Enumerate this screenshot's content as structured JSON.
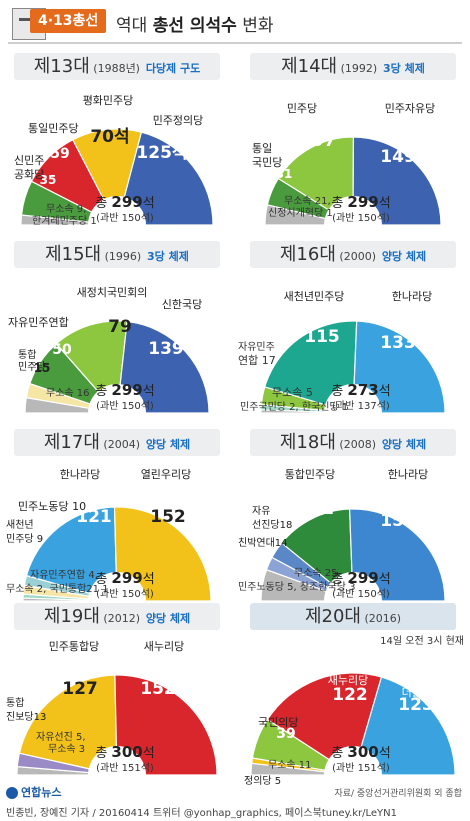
{
  "header": {
    "badge": "4·13총선",
    "title_pre": "역대 ",
    "title_strong": "총선 의석수",
    "title_post": " 변화"
  },
  "colors": {
    "blue": "#3d62b0",
    "yellow": "#f2c21b",
    "red": "#d8262c",
    "green": "#4a9a3e",
    "lightgreen": "#8dc63f",
    "gray": "#b8b8b8",
    "teal": "#1ea790",
    "lightblue": "#3aa3df",
    "dark-green": "#2e8b3c",
    "periwinkle": "#8ca3d6",
    "purple": "#9a8ac6",
    "cream": "#f5e6a5",
    "mint": "#9ed9c4"
  },
  "chart_data": [
    {
      "type": "pie",
      "gen": "제13대",
      "year": "(1988년)",
      "system": "다당제 구도",
      "total": "299",
      "majority": "(과반 150석)",
      "slices": [
        {
          "name": "무소속 9, 한겨레민주당 1",
          "value": 10,
          "color": "#b8b8b8"
        },
        {
          "name": "신민주 공화당",
          "value": 35,
          "color": "#4a9a3e"
        },
        {
          "name": "통일민주당",
          "value": 59,
          "color": "#d8262c"
        },
        {
          "name": "평화민주당",
          "value": 70,
          "color": "#f2c21b"
        },
        {
          "name": "민주정의당",
          "value": 125,
          "color": "#3d62b0"
        }
      ]
    },
    {
      "type": "pie",
      "gen": "제14대",
      "year": "(1992)",
      "system": "3당 체제",
      "total": "299",
      "majority": "(과반 150석)",
      "slices": [
        {
          "name": "무소속 21, 신정치개혁당 1",
          "value": 22,
          "color": "#b8b8b8"
        },
        {
          "name": "통일 국민당",
          "value": 31,
          "color": "#4a9a3e"
        },
        {
          "name": "민주당",
          "value": 97,
          "color": "#8dc63f"
        },
        {
          "name": "민주자유당",
          "value": 149,
          "color": "#3d62b0"
        }
      ]
    },
    {
      "type": "pie",
      "gen": "제15대",
      "year": "(1996)",
      "system": "3당 체제",
      "total": "299",
      "majority": "(과반 150석)",
      "slices": [
        {
          "name": "무소속 16",
          "value": 16,
          "color": "#b8b8b8"
        },
        {
          "name": "통합 민주당",
          "value": 15,
          "color": "#f5e6a5"
        },
        {
          "name": "자유민주연합",
          "value": 50,
          "color": "#4a9a3e"
        },
        {
          "name": "새정치국민회의",
          "value": 79,
          "color": "#8dc63f"
        },
        {
          "name": "신한국당",
          "value": 139,
          "color": "#3d62b0"
        }
      ]
    },
    {
      "type": "pie",
      "gen": "제16대",
      "year": "(2000)",
      "system": "양당 체제",
      "total": "273",
      "majority": "(과반 137석)",
      "slices": [
        {
          "name": "민주국민당 2, 한국신당 1",
          "value": 3,
          "color": "#b8b8b8"
        },
        {
          "name": "무소속 5",
          "value": 5,
          "color": "#9ed9c4"
        },
        {
          "name": "자유민주 연합 17",
          "value": 17,
          "color": "#8dc63f"
        },
        {
          "name": "새천년민주당",
          "value": 115,
          "color": "#1ea790"
        },
        {
          "name": "한나라당",
          "value": 133,
          "color": "#3aa3df"
        }
      ]
    },
    {
      "type": "pie",
      "gen": "제17대",
      "year": "(2004)",
      "system": "양당 체제",
      "total": "299",
      "majority": "(과반 150석)",
      "slices": [
        {
          "name": "무소속 2, 국민통합21 1",
          "value": 3,
          "color": "#b8b8b8"
        },
        {
          "name": "자유민주연합 4",
          "value": 4,
          "color": "#9ed9c4"
        },
        {
          "name": "새천년 민주당 9",
          "value": 9,
          "color": "#f5e6a5"
        },
        {
          "name": "민주노동당 10",
          "value": 10,
          "color": "#9ad0d4"
        },
        {
          "name": "한나라당",
          "value": 121,
          "color": "#3aa3df"
        },
        {
          "name": "열린우리당",
          "value": 152,
          "color": "#f2c21b"
        }
      ]
    },
    {
      "type": "pie",
      "gen": "제18대",
      "year": "(2008)",
      "system": "양당 체제",
      "total": "299",
      "majority": "(과반 150석)",
      "slices": [
        {
          "name": "무소속 25, 민주노동당 5, 창조한국당 3",
          "value": 33,
          "color": "#b8b8b8"
        },
        {
          "name": "친박연대 14",
          "value": 14,
          "color": "#8ca3d6"
        },
        {
          "name": "자유 선진당 18",
          "value": 18,
          "color": "#5a87c6"
        },
        {
          "name": "통합민주당",
          "value": 81,
          "color": "#2e8b3c"
        },
        {
          "name": "한나라당",
          "value": 153,
          "color": "#3d86d0"
        }
      ]
    },
    {
      "type": "pie",
      "gen": "제19대",
      "year": "(2012)",
      "system": "양당 체제",
      "total": "300",
      "majority": "(과반 151석)",
      "slices": [
        {
          "name": "자유선진 5, 무소속 3",
          "value": 8,
          "color": "#b8b8b8"
        },
        {
          "name": "통합 진보당 13",
          "value": 13,
          "color": "#9a8ac6"
        },
        {
          "name": "민주통합당",
          "value": 127,
          "color": "#f2c21b"
        },
        {
          "name": "새누리당",
          "value": 152,
          "color": "#d8262c"
        }
      ]
    },
    {
      "type": "pie",
      "gen": "제20대",
      "year": "(2016)",
      "system": "",
      "note": "14일 오전 3시 현재",
      "total": "300",
      "majority": "(과반 151석)",
      "slices": [
        {
          "name": "무소속 11",
          "value": 11,
          "color": "#b8b8b8"
        },
        {
          "name": "정의당 5",
          "value": 5,
          "color": "#f2c21b"
        },
        {
          "name": "국민의당",
          "value": 39,
          "color": "#8dc63f"
        },
        {
          "name": "새누리당",
          "value": 122,
          "color": "#d8262c"
        },
        {
          "name": "더불어민주당",
          "value": 123,
          "color": "#3aa3df"
        }
      ]
    }
  ],
  "labels": {
    "p0": {
      "s0": "무소속 9,",
      "s0b": "한겨레민주당 1",
      "s1": "35",
      "n1a": "신민주",
      "n1b": "공화당",
      "s2": "59",
      "n2": "통일민주당",
      "s3": "70석",
      "n3": "평화민주당",
      "s4": "125석",
      "n4": "민주정의당"
    },
    "p1": {
      "s0": "무소속 21,",
      "s0b": "신정치개혁당 1",
      "s1": "31",
      "n1a": "통일",
      "n1b": "국민당",
      "s2": "97",
      "n2": "민주당",
      "s3": "149",
      "n3": "민주자유당"
    },
    "p2": {
      "s0": "무소속 16",
      "s1": "15",
      "n1a": "통합",
      "n1b": "민주당",
      "s2": "50",
      "n2": "자유민주연합",
      "s3": "79",
      "n3": "새정치국민회의",
      "s4": "139",
      "n4": "신한국당"
    },
    "p3": {
      "s0": "민주국민당 2, 한국신당 1",
      "s1": "무소속 5",
      "n2a": "자유민주",
      "n2b": "연합 17",
      "s3": "115",
      "n3": "새천년민주당",
      "s4": "133",
      "n4": "한나라당"
    },
    "p4": {
      "s0": "무소속 2, 국민통합21 1",
      "s1": "자유민주연합 4,",
      "n2a": "새천년",
      "n2b": "민주당 9",
      "n3": "민주노동당 10",
      "s4": "121",
      "n4": "한나라당",
      "s5": "152",
      "n5": "열린우리당"
    },
    "p5": {
      "s0": "무소속 25,",
      "s0b": "민주노동당 5, 창조한국당 3",
      "n1": "친박연대14",
      "n2a": "자유",
      "n2b": "선진당18",
      "s3": "81",
      "n3": "통합민주당",
      "s4": "153",
      "n4": "한나라당"
    },
    "p6": {
      "s0": "자유선진 5,",
      "s0b": "무소속 3",
      "n1a": "통합",
      "n1b": "진보당13",
      "s2": "127",
      "n2": "민주통합당",
      "s3": "152",
      "n3": "새누리당"
    },
    "p7": {
      "s0": "무소속 11",
      "n1": "정의당 5",
      "s2": "39",
      "n2": "국민의당",
      "s3": "122",
      "n3": "새누리당",
      "s4": "123",
      "n4": "더불어민주당"
    }
  },
  "total_prefix": "총 ",
  "seat_unit": "석",
  "footer": {
    "logo": "연합뉴스",
    "source": "자료/ 중앙선거관리위원회 외 종합",
    "credits": "빈종빈, 장예진 기자 / 20160414  트위터 @yonhap_graphics, 페이스북tuney.kr/LeYN1"
  }
}
